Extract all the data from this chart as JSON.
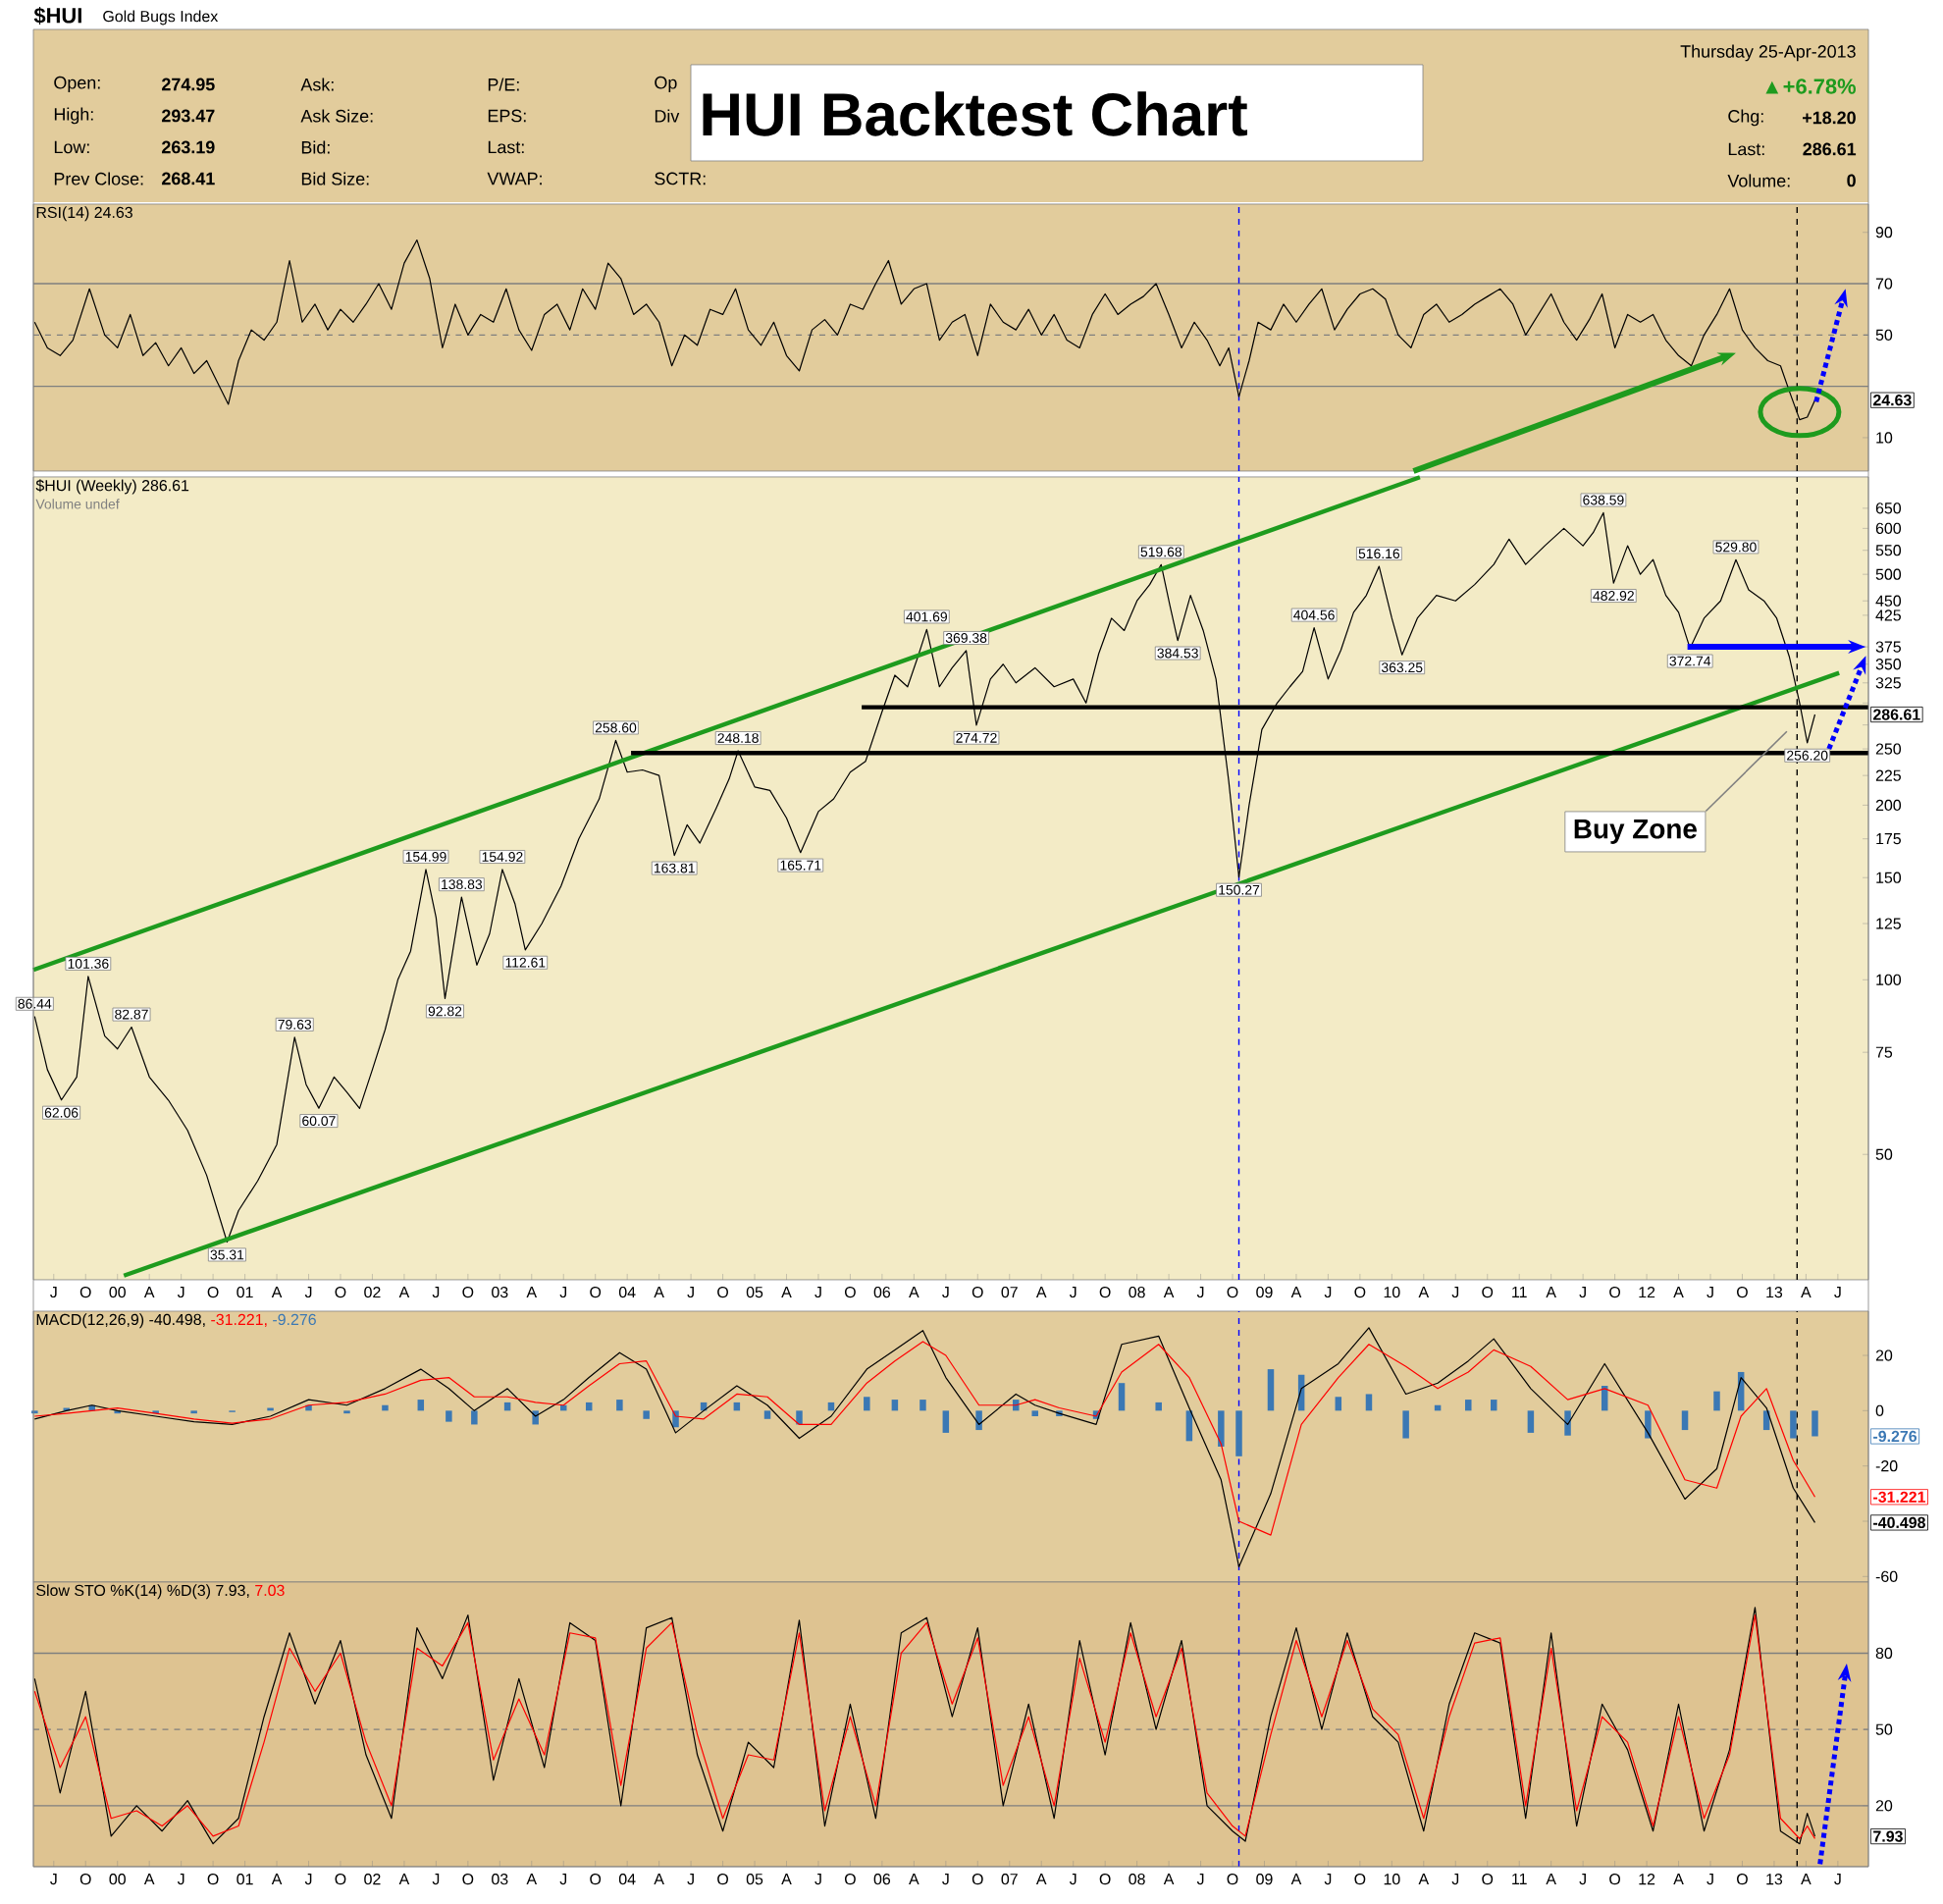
{
  "chart_data": [
    {
      "type": "other",
      "title": "HUI Backtest Chart",
      "annotations": [
        "$HUI",
        "Gold Bugs Index",
        "Open:",
        "274.95",
        "High:",
        "293.47",
        "Low:",
        "263.19",
        "Prev Close:",
        "268.41",
        "Ask:",
        "Ask Size:",
        "Bid:",
        "Bid Size:",
        "P/E:",
        "EPS:",
        "Last:",
        "VWAP:",
        "Op",
        "Div",
        "SCTR:",
        "Thursday 25-Apr-2013",
        "▲+6.78%",
        "Chg:",
        "+18.20",
        "Last:",
        "286.61",
        "Volume:",
        "0"
      ]
    },
    {
      "type": "line",
      "tick_labels": "y",
      "xlim": [
        1999.34,
        2013.74
      ],
      "ylim": [
        -3,
        101
      ],
      "yticks": [
        10,
        {
          "value": 30,
          "label": null
        },
        50,
        70,
        90
      ],
      "x": [
        1999.35,
        1999.45,
        1999.55,
        1999.65,
        1999.78,
        1999.9,
        2000.0,
        2000.1,
        2000.2,
        2000.3,
        2000.4,
        2000.5,
        2000.6,
        2000.7,
        2000.8,
        2000.87,
        2000.95,
        2001.05,
        2001.15,
        2001.25,
        2001.35,
        2001.45,
        2001.55,
        2001.65,
        2001.75,
        2001.85,
        2001.95,
        2002.05,
        2002.15,
        2002.25,
        2002.35,
        2002.45,
        2002.55,
        2002.65,
        2002.75,
        2002.85,
        2002.95,
        2003.05,
        2003.15,
        2003.25,
        2003.35,
        2003.45,
        2003.55,
        2003.65,
        2003.75,
        2003.85,
        2003.95,
        2004.05,
        2004.15,
        2004.25,
        2004.35,
        2004.45,
        2004.55,
        2004.65,
        2004.75,
        2004.85,
        2004.95,
        2005.05,
        2005.15,
        2005.25,
        2005.35,
        2005.45,
        2005.55,
        2005.65,
        2005.75,
        2005.85,
        2005.95,
        2006.05,
        2006.15,
        2006.25,
        2006.35,
        2006.45,
        2006.55,
        2006.65,
        2006.75,
        2006.85,
        2006.95,
        2007.05,
        2007.15,
        2007.25,
        2007.35,
        2007.45,
        2007.55,
        2007.65,
        2007.75,
        2007.85,
        2007.95,
        2008.05,
        2008.15,
        2008.25,
        2008.35,
        2008.45,
        2008.55,
        2008.65,
        2008.72,
        2008.8,
        2008.88,
        2008.95,
        2009.05,
        2009.15,
        2009.25,
        2009.35,
        2009.45,
        2009.55,
        2009.65,
        2009.75,
        2009.85,
        2009.95,
        2010.05,
        2010.15,
        2010.25,
        2010.35,
        2010.45,
        2010.55,
        2010.65,
        2010.75,
        2010.85,
        2010.95,
        2011.05,
        2011.15,
        2011.25,
        2011.35,
        2011.45,
        2011.55,
        2011.65,
        2011.75,
        2011.85,
        2011.95,
        2012.05,
        2012.15,
        2012.25,
        2012.35,
        2012.45,
        2012.55,
        2012.65,
        2012.75,
        2012.85,
        2012.95,
        2013.05,
        2013.12,
        2013.2,
        2013.26,
        2013.32
      ],
      "series": [
        {
          "color": "#000000",
          "values": [
            55,
            45,
            42,
            48,
            68,
            50,
            45,
            58,
            42,
            47,
            38,
            45,
            35,
            40,
            30,
            23,
            40,
            52,
            48,
            55,
            79,
            55,
            62,
            52,
            60,
            55,
            62,
            70,
            60,
            78,
            87,
            72,
            45,
            62,
            50,
            58,
            55,
            68,
            52,
            44,
            58,
            62,
            52,
            68,
            60,
            78,
            72,
            58,
            62,
            55,
            38,
            50,
            46,
            60,
            58,
            68,
            52,
            46,
            55,
            42,
            36,
            52,
            56,
            50,
            62,
            60,
            70,
            79,
            62,
            68,
            70,
            48,
            55,
            58,
            42,
            62,
            55,
            52,
            60,
            50,
            58,
            48,
            45,
            58,
            66,
            58,
            62,
            65,
            70,
            58,
            45,
            55,
            48,
            38,
            45,
            26,
            40,
            55,
            52,
            62,
            55,
            62,
            68,
            52,
            60,
            66,
            68,
            64,
            50,
            45,
            58,
            62,
            55,
            58,
            62,
            65,
            68,
            62,
            50,
            58,
            66,
            55,
            48,
            56,
            66,
            45,
            58,
            55,
            58,
            48,
            42,
            38,
            50,
            58,
            68,
            52,
            45,
            40,
            38,
            28,
            17,
            18,
            24.63
          ]
        }
      ],
      "ref_lines": [
        {
          "axis": "y",
          "value": 30,
          "color": "#7f7f7f",
          "line_style": "solid"
        },
        {
          "axis": "y",
          "value": 70,
          "color": "#7f7f7f",
          "line_style": "solid"
        },
        {
          "axis": "y",
          "value": 50,
          "color": "#7f7f7f",
          "line_style": "dashed"
        },
        {
          "axis": "x",
          "value": 2008.8,
          "color": "#0000ff",
          "line_style": "dashed"
        },
        {
          "axis": "x",
          "value": 2013.18,
          "color": "#000000",
          "line_style": "dashed"
        }
      ],
      "annotations": [
        "RSI(14) 24.63",
        "24.63"
      ]
    },
    {
      "type": "line",
      "log": true,
      "xlim": [
        1999.34,
        2013.74
      ],
      "ylim": [
        30.4,
        736
      ],
      "xticks": [
        {
          "value": 1999.5,
          "label": "J"
        },
        {
          "value": 1999.75,
          "label": "O"
        },
        {
          "value": 2000,
          "label": "00"
        },
        {
          "value": 2000.25,
          "label": "A"
        },
        {
          "value": 2000.5,
          "label": "J"
        },
        {
          "value": 2000.75,
          "label": "O"
        },
        {
          "value": 2001,
          "label": "01"
        },
        {
          "value": 2001.25,
          "label": "A"
        },
        {
          "value": 2001.5,
          "label": "J"
        },
        {
          "value": 2001.75,
          "label": "O"
        },
        {
          "value": 2002,
          "label": "02"
        },
        {
          "value": 2002.25,
          "label": "A"
        },
        {
          "value": 2002.5,
          "label": "J"
        },
        {
          "value": 2002.75,
          "label": "O"
        },
        {
          "value": 2003,
          "label": "03"
        },
        {
          "value": 2003.25,
          "label": "A"
        },
        {
          "value": 2003.5,
          "label": "J"
        },
        {
          "value": 2003.75,
          "label": "O"
        },
        {
          "value": 2004,
          "label": "04"
        },
        {
          "value": 2004.25,
          "label": "A"
        },
        {
          "value": 2004.5,
          "label": "J"
        },
        {
          "value": 2004.75,
          "label": "O"
        },
        {
          "value": 2005,
          "label": "05"
        },
        {
          "value": 2005.25,
          "label": "A"
        },
        {
          "value": 2005.5,
          "label": "J"
        },
        {
          "value": 2005.75,
          "label": "O"
        },
        {
          "value": 2006,
          "label": "06"
        },
        {
          "value": 2006.25,
          "label": "A"
        },
        {
          "value": 2006.5,
          "label": "J"
        },
        {
          "value": 2006.75,
          "label": "O"
        },
        {
          "value": 2007,
          "label": "07"
        },
        {
          "value": 2007.25,
          "label": "A"
        },
        {
          "value": 2007.5,
          "label": "J"
        },
        {
          "value": 2007.75,
          "label": "O"
        },
        {
          "value": 2008,
          "label": "08"
        },
        {
          "value": 2008.25,
          "label": "A"
        },
        {
          "value": 2008.5,
          "label": "J"
        },
        {
          "value": 2008.75,
          "label": "O"
        },
        {
          "value": 2009,
          "label": "09"
        },
        {
          "value": 2009.25,
          "label": "A"
        },
        {
          "value": 2009.5,
          "label": "J"
        },
        {
          "value": 2009.75,
          "label": "O"
        },
        {
          "value": 2010,
          "label": "10"
        },
        {
          "value": 2010.25,
          "label": "A"
        },
        {
          "value": 2010.5,
          "label": "J"
        },
        {
          "value": 2010.75,
          "label": "O"
        },
        {
          "value": 2011,
          "label": "11"
        },
        {
          "value": 2011.25,
          "label": "A"
        },
        {
          "value": 2011.5,
          "label": "J"
        },
        {
          "value": 2011.75,
          "label": "O"
        },
        {
          "value": 2012,
          "label": "12"
        },
        {
          "value": 2012.25,
          "label": "A"
        },
        {
          "value": 2012.5,
          "label": "J"
        },
        {
          "value": 2012.75,
          "label": "O"
        },
        {
          "value": 2013,
          "label": "13"
        },
        {
          "value": 2013.25,
          "label": "A"
        },
        {
          "value": 2013.5,
          "label": "J"
        }
      ],
      "yticks": [
        50,
        75,
        100,
        125,
        150,
        175,
        200,
        225,
        250,
        {
          "value": 275,
          "label": null
        },
        {
          "value": 300,
          "label": null
        },
        325,
        350,
        375,
        425,
        450,
        500,
        550,
        600,
        650
      ],
      "x": [
        1999.35,
        1999.45,
        1999.56,
        1999.68,
        1999.77,
        1999.9,
        2000.0,
        2000.11,
        2000.25,
        2000.4,
        2000.55,
        2000.7,
        2000.86,
        2000.95,
        2001.1,
        2001.25,
        2001.39,
        2001.48,
        2001.58,
        2001.7,
        2001.8,
        2001.9,
        2002.0,
        2002.1,
        2002.2,
        2002.3,
        2002.42,
        2002.5,
        2002.57,
        2002.7,
        2002.82,
        2002.92,
        2003.02,
        2003.12,
        2003.2,
        2003.33,
        2003.48,
        2003.62,
        2003.78,
        2003.91,
        2004.0,
        2004.12,
        2004.25,
        2004.37,
        2004.47,
        2004.57,
        2004.7,
        2004.8,
        2004.87,
        2005.0,
        2005.12,
        2005.25,
        2005.36,
        2005.5,
        2005.62,
        2005.75,
        2005.87,
        2006.0,
        2006.1,
        2006.2,
        2006.28,
        2006.35,
        2006.45,
        2006.55,
        2006.66,
        2006.74,
        2006.85,
        2006.95,
        2007.05,
        2007.2,
        2007.35,
        2007.5,
        2007.6,
        2007.7,
        2007.8,
        2007.9,
        2008.0,
        2008.1,
        2008.19,
        2008.26,
        2008.32,
        2008.42,
        2008.52,
        2008.62,
        2008.72,
        2008.8,
        2008.88,
        2008.98,
        2009.1,
        2009.2,
        2009.3,
        2009.39,
        2009.5,
        2009.6,
        2009.7,
        2009.8,
        2009.9,
        2010.0,
        2010.08,
        2010.2,
        2010.35,
        2010.5,
        2010.65,
        2010.8,
        2010.92,
        2011.05,
        2011.2,
        2011.35,
        2011.5,
        2011.58,
        2011.66,
        2011.74,
        2011.85,
        2011.95,
        2012.05,
        2012.15,
        2012.25,
        2012.34,
        2012.45,
        2012.58,
        2012.7,
        2012.8,
        2012.92,
        2013.02,
        2013.12,
        2013.2,
        2013.26,
        2013.32
      ],
      "series": [
        {
          "color": "#000000",
          "values": [
            86.44,
            70,
            62.06,
            68,
            101.36,
            80,
            76,
            82.87,
            68,
            62,
            55,
            46,
            35.31,
            40,
            45,
            52,
            79.63,
            66,
            60.07,
            68,
            64,
            60,
            70,
            82,
            100,
            112,
            154.99,
            128,
            92.82,
            138.83,
            106,
            120,
            154.92,
            135,
            112.61,
            125,
            145,
            175,
            205,
            258.6,
            228,
            230,
            225,
            163.81,
            185,
            172,
            198,
            222,
            248.18,
            215,
            212,
            190,
            165.71,
            195,
            205,
            228,
            238,
            290,
            335,
            320,
            360,
            401.69,
            320,
            345,
            369.38,
            274.72,
            330,
            350,
            325,
            345,
            320,
            330,
            300,
            365,
            420,
            400,
            450,
            480,
            519.68,
            440,
            384.53,
            460,
            400,
            330,
            220,
            150.27,
            200,
            270,
            300,
            320,
            340,
            404.56,
            330,
            370,
            430,
            460,
            516.16,
            420,
            363.25,
            420,
            460,
            450,
            480,
            520,
            575,
            520,
            560,
            600,
            560,
            590,
            638.59,
            482.92,
            560,
            500,
            530,
            460,
            430,
            372.74,
            420,
            450,
            529.8,
            470,
            450,
            420,
            360,
            300,
            256.2,
            286.61
          ]
        },
        {
          "color": "#1e9b1e",
          "x": [
            1999.34,
            2010.22
          ],
          "values": [
            104,
            735
          ]
        },
        {
          "color": "#1e9b1e",
          "x": [
            2000.05,
            2013.51
          ],
          "values": [
            30.9,
            338
          ]
        },
        {
          "color": "#000000",
          "x": [
            2005.84,
            2013.74
          ],
          "values": [
            295,
            295
          ]
        },
        {
          "color": "#000000",
          "x": [
            2004.03,
            2013.74
          ],
          "values": [
            246,
            246
          ]
        }
      ],
      "ref_lines": [
        {
          "axis": "x",
          "value": 2008.8,
          "color": "#0000ff",
          "line_style": "dashed"
        },
        {
          "axis": "x",
          "value": 2013.18,
          "color": "#000000",
          "line_style": "dashed"
        }
      ],
      "annotations": [
        "$HUI (Weekly) 286.61",
        "Volume undef",
        "Buy Zone",
        {
          "text": "86.44",
          "x": 1999.35,
          "y": 86.44
        },
        {
          "text": "62.06",
          "x": 1999.56,
          "y": 62.06
        },
        {
          "text": "101.36",
          "x": 1999.77,
          "y": 101.36
        },
        {
          "text": "82.87",
          "x": 2000.11,
          "y": 82.87
        },
        {
          "text": "35.31",
          "x": 2000.86,
          "y": 35.31
        },
        {
          "text": "79.63",
          "x": 2001.39,
          "y": 79.63
        },
        {
          "text": "60.07",
          "x": 2001.58,
          "y": 60.07
        },
        {
          "text": "154.99",
          "x": 2002.42,
          "y": 154.99
        },
        {
          "text": "92.82",
          "x": 2002.57,
          "y": 92.82
        },
        {
          "text": "138.83",
          "x": 2002.7,
          "y": 138.83
        },
        {
          "text": "154.92",
          "x": 2003.02,
          "y": 154.92
        },
        {
          "text": "112.61",
          "x": 2003.2,
          "y": 112.61
        },
        {
          "text": "258.60",
          "x": 2003.91,
          "y": 258.6
        },
        {
          "text": "163.81",
          "x": 2004.37,
          "y": 163.81
        },
        {
          "text": "248.18",
          "x": 2004.87,
          "y": 248.18
        },
        {
          "text": "165.71",
          "x": 2005.36,
          "y": 165.71
        },
        {
          "text": "401.69",
          "x": 2006.35,
          "y": 401.69
        },
        {
          "text": "369.38",
          "x": 2006.66,
          "y": 369.38
        },
        {
          "text": "274.72",
          "x": 2006.74,
          "y": 274.72
        },
        {
          "text": "519.68",
          "x": 2008.19,
          "y": 519.68
        },
        {
          "text": "384.53",
          "x": 2008.32,
          "y": 384.53
        },
        {
          "text": "150.27",
          "x": 2008.8,
          "y": 150.27
        },
        {
          "text": "404.56",
          "x": 2009.39,
          "y": 404.56
        },
        {
          "text": "516.16",
          "x": 2009.9,
          "y": 516.16
        },
        {
          "text": "363.25",
          "x": 2010.08,
          "y": 363.25
        },
        {
          "text": "638.59",
          "x": 2011.66,
          "y": 638.59
        },
        {
          "text": "482.92",
          "x": 2011.74,
          "y": 482.92
        },
        {
          "text": "372.74",
          "x": 2012.34,
          "y": 372.74
        },
        {
          "text": "529.80",
          "x": 2012.7,
          "y": 529.8
        },
        {
          "text": "256.20",
          "x": 2013.26,
          "y": 256.2
        },
        "286.61"
      ]
    },
    {
      "type": "line",
      "tick_labels": "y",
      "xlim": [
        1999.34,
        2013.74
      ],
      "ylim": [
        -62,
        36
      ],
      "yticks": [
        -60,
        {
          "value": -40,
          "label": null
        },
        -20,
        0,
        20
      ],
      "x": [
        1999.35,
        1999.6,
        1999.8,
        2000.0,
        2000.3,
        2000.6,
        2000.9,
        2001.2,
        2001.5,
        2001.8,
        2002.1,
        2002.38,
        2002.6,
        2002.8,
        2003.06,
        2003.28,
        2003.5,
        2003.7,
        2003.94,
        2004.15,
        2004.38,
        2004.6,
        2004.86,
        2005.1,
        2005.35,
        2005.6,
        2005.88,
        2006.1,
        2006.32,
        2006.5,
        2006.76,
        2007.05,
        2007.2,
        2007.39,
        2007.68,
        2007.88,
        2008.17,
        2008.41,
        2008.66,
        2008.8,
        2009.05,
        2009.29,
        2009.58,
        2009.82,
        2010.11,
        2010.36,
        2010.6,
        2010.8,
        2011.09,
        2011.38,
        2011.67,
        2012.01,
        2012.3,
        2012.55,
        2012.74,
        2012.94,
        2013.15,
        2013.32
      ],
      "series": [
        {
          "color": "#000000",
          "values": [
            -3,
            0,
            2,
            0,
            -2,
            -4,
            -5,
            -2,
            4,
            2,
            8,
            15,
            8,
            0,
            8,
            -2,
            4,
            12,
            21,
            15,
            -8,
            0,
            9,
            2,
            -10,
            -2,
            15,
            22,
            29,
            12,
            -5,
            6,
            2,
            -1,
            -5,
            24,
            27,
            1,
            -25,
            -56.5,
            -30,
            8,
            17,
            30,
            6,
            10,
            18,
            26,
            8,
            -5,
            17,
            -8,
            -32,
            -21,
            12,
            1,
            -28,
            -40.498
          ]
        },
        {
          "color": "#ff0000",
          "values": [
            -2,
            -1,
            0,
            1,
            -1,
            -3,
            -4.5,
            -3,
            2,
            3,
            6,
            11,
            12,
            5,
            5,
            3,
            2,
            9,
            17,
            18,
            -2,
            -3,
            6,
            5,
            -5,
            -5,
            10,
            18,
            25,
            20,
            2,
            2,
            4,
            1,
            -2,
            14,
            24,
            12,
            -12,
            -40,
            -45,
            -5,
            12,
            24,
            16,
            8,
            14,
            22,
            16,
            4,
            8,
            2,
            -25,
            -28,
            -2,
            8,
            -18,
            -31.221
          ]
        },
        {
          "color": "#3b78b4",
          "type": "bar",
          "values": [
            -1,
            1,
            2,
            -1,
            -1,
            -1,
            -0.5,
            1,
            2,
            -1,
            2,
            4,
            -4,
            -5,
            3,
            -5,
            2,
            3,
            4,
            -3,
            -6,
            3,
            3,
            -3,
            -5,
            3,
            5,
            4,
            4,
            -8,
            -7,
            4,
            -2,
            -2,
            -3,
            10,
            3,
            -11,
            -13,
            -16.5,
            15,
            13,
            5,
            6,
            -10,
            2,
            4,
            4,
            -8,
            -9,
            9,
            -10,
            -7,
            7,
            14,
            -7,
            -10,
            -9.276
          ]
        }
      ],
      "ref_lines": [
        {
          "axis": "x",
          "value": 2008.8,
          "color": "#0000ff",
          "line_style": "dashed"
        },
        {
          "axis": "x",
          "value": 2013.18,
          "color": "#000000",
          "line_style": "dashed"
        }
      ],
      "annotations": [
        "MACD(12,26,9) -40.498,",
        "-31.221,",
        "-9.276",
        "-9.276",
        "-31.221",
        "-40.498"
      ]
    },
    {
      "type": "line",
      "xlim": [
        1999.34,
        2013.74
      ],
      "ylim": [
        -4,
        108
      ],
      "xticks": [
        {
          "value": 1999.5,
          "label": "J"
        },
        {
          "value": 1999.75,
          "label": "O"
        },
        {
          "value": 2000,
          "label": "00"
        },
        {
          "value": 2000.25,
          "label": "A"
        },
        {
          "value": 2000.5,
          "label": "J"
        },
        {
          "value": 2000.75,
          "label": "O"
        },
        {
          "value": 2001,
          "label": "01"
        },
        {
          "value": 2001.25,
          "label": "A"
        },
        {
          "value": 2001.5,
          "label": "J"
        },
        {
          "value": 2001.75,
          "label": "O"
        },
        {
          "value": 2002,
          "label": "02"
        },
        {
          "value": 2002.25,
          "label": "A"
        },
        {
          "value": 2002.5,
          "label": "J"
        },
        {
          "value": 2002.75,
          "label": "O"
        },
        {
          "value": 2003,
          "label": "03"
        },
        {
          "value": 2003.25,
          "label": "A"
        },
        {
          "value": 2003.5,
          "label": "J"
        },
        {
          "value": 2003.75,
          "label": "O"
        },
        {
          "value": 2004,
          "label": "04"
        },
        {
          "value": 2004.25,
          "label": "A"
        },
        {
          "value": 2004.5,
          "label": "J"
        },
        {
          "value": 2004.75,
          "label": "O"
        },
        {
          "value": 2005,
          "label": "05"
        },
        {
          "value": 2005.25,
          "label": "A"
        },
        {
          "value": 2005.5,
          "label": "J"
        },
        {
          "value": 2005.75,
          "label": "O"
        },
        {
          "value": 2006,
          "label": "06"
        },
        {
          "value": 2006.25,
          "label": "A"
        },
        {
          "value": 2006.5,
          "label": "J"
        },
        {
          "value": 2006.75,
          "label": "O"
        },
        {
          "value": 2007,
          "label": "07"
        },
        {
          "value": 2007.25,
          "label": "A"
        },
        {
          "value": 2007.5,
          "label": "J"
        },
        {
          "value": 2007.75,
          "label": "O"
        },
        {
          "value": 2008,
          "label": "08"
        },
        {
          "value": 2008.25,
          "label": "A"
        },
        {
          "value": 2008.5,
          "label": "J"
        },
        {
          "value": 2008.75,
          "label": "O"
        },
        {
          "value": 2009,
          "label": "09"
        },
        {
          "value": 2009.25,
          "label": "A"
        },
        {
          "value": 2009.5,
          "label": "J"
        },
        {
          "value": 2009.75,
          "label": "O"
        },
        {
          "value": 2010,
          "label": "10"
        },
        {
          "value": 2010.25,
          "label": "A"
        },
        {
          "value": 2010.5,
          "label": "J"
        },
        {
          "value": 2010.75,
          "label": "O"
        },
        {
          "value": 2011,
          "label": "11"
        },
        {
          "value": 2011.25,
          "label": "A"
        },
        {
          "value": 2011.5,
          "label": "J"
        },
        {
          "value": 2011.75,
          "label": "O"
        },
        {
          "value": 2012,
          "label": "12"
        },
        {
          "value": 2012.25,
          "label": "A"
        },
        {
          "value": 2012.5,
          "label": "J"
        },
        {
          "value": 2012.75,
          "label": "O"
        },
        {
          "value": 2013,
          "label": "13"
        },
        {
          "value": 2013.25,
          "label": "A"
        },
        {
          "value": 2013.5,
          "label": "J"
        }
      ],
      "yticks": [
        20,
        50,
        80
      ],
      "x": [
        1999.35,
        1999.55,
        1999.75,
        1999.95,
        2000.15,
        2000.35,
        2000.55,
        2000.75,
        2000.95,
        2001.15,
        2001.35,
        2001.55,
        2001.75,
        2001.95,
        2002.15,
        2002.35,
        2002.55,
        2002.75,
        2002.95,
        2003.15,
        2003.35,
        2003.55,
        2003.75,
        2003.95,
        2004.15,
        2004.35,
        2004.55,
        2004.75,
        2004.95,
        2005.15,
        2005.35,
        2005.55,
        2005.75,
        2005.95,
        2006.15,
        2006.35,
        2006.55,
        2006.75,
        2006.95,
        2007.15,
        2007.35,
        2007.55,
        2007.75,
        2007.95,
        2008.15,
        2008.35,
        2008.55,
        2008.75,
        2008.85,
        2009.05,
        2009.25,
        2009.45,
        2009.65,
        2009.85,
        2010.05,
        2010.25,
        2010.45,
        2010.65,
        2010.85,
        2011.05,
        2011.25,
        2011.45,
        2011.65,
        2011.85,
        2012.05,
        2012.25,
        2012.45,
        2012.65,
        2012.85,
        2013.05,
        2013.2,
        2013.26,
        2013.32
      ],
      "series": [
        {
          "color": "#000000",
          "values": [
            70,
            25,
            65,
            8,
            20,
            10,
            22,
            5,
            15,
            55,
            88,
            60,
            85,
            40,
            15,
            90,
            70,
            95,
            30,
            70,
            35,
            92,
            85,
            20,
            90,
            94,
            40,
            10,
            45,
            35,
            93,
            12,
            60,
            15,
            88,
            94,
            55,
            90,
            20,
            60,
            15,
            85,
            40,
            92,
            50,
            85,
            20,
            10,
            6,
            55,
            90,
            50,
            88,
            55,
            45,
            10,
            60,
            88,
            84,
            15,
            88,
            12,
            60,
            42,
            10,
            60,
            10,
            42,
            98,
            10,
            5,
            17,
            7.93
          ]
        },
        {
          "color": "#ff0000",
          "values": [
            65,
            35,
            55,
            15,
            18,
            12,
            20,
            8,
            12,
            45,
            82,
            65,
            80,
            45,
            20,
            82,
            75,
            92,
            38,
            62,
            40,
            88,
            86,
            28,
            82,
            92,
            48,
            15,
            40,
            38,
            88,
            18,
            55,
            20,
            80,
            92,
            60,
            86,
            28,
            55,
            20,
            78,
            45,
            88,
            55,
            82,
            25,
            12,
            8,
            48,
            85,
            55,
            85,
            58,
            48,
            15,
            55,
            84,
            86,
            20,
            82,
            18,
            55,
            45,
            12,
            55,
            15,
            40,
            95,
            15,
            7,
            12,
            7.03
          ]
        }
      ],
      "ref_lines": [
        {
          "axis": "y",
          "value": 20,
          "color": "#7f7f7f",
          "line_style": "solid"
        },
        {
          "axis": "y",
          "value": 80,
          "color": "#7f7f7f",
          "line_style": "solid"
        },
        {
          "axis": "y",
          "value": 50,
          "color": "#7f7f7f",
          "line_style": "dashed"
        },
        {
          "axis": "x",
          "value": 2008.8,
          "color": "#0000ff",
          "line_style": "dashed"
        },
        {
          "axis": "x",
          "value": 2013.18,
          "color": "#000000",
          "line_style": "dashed"
        }
      ],
      "annotations": [
        "Slow STO %K(14) %D(3) 7.93,",
        "7.03",
        "7.93"
      ]
    }
  ]
}
